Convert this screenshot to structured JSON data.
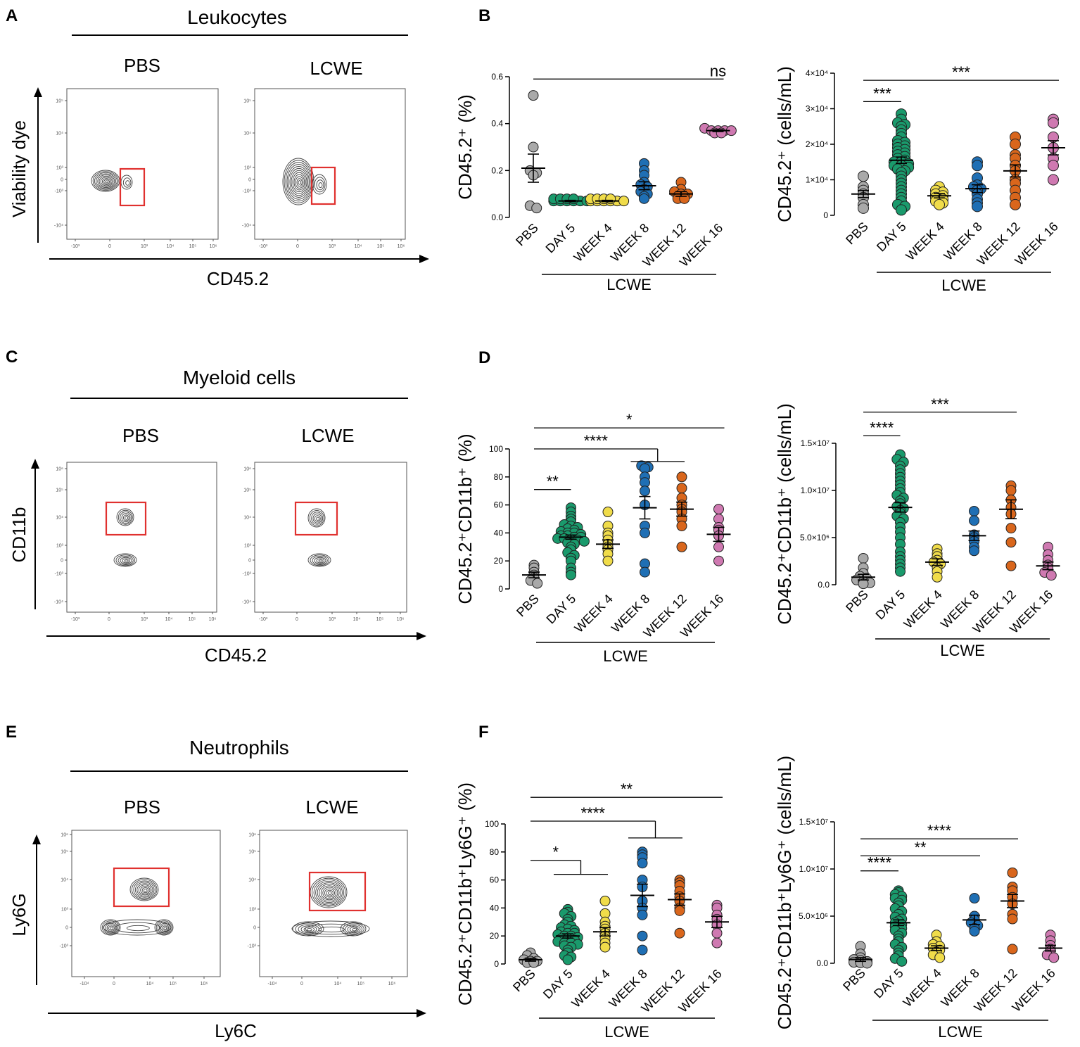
{
  "panels": {
    "A": {
      "letter": "A",
      "title": "Leukocytes",
      "cond_left": "PBS",
      "cond_right": "LCWE",
      "ylabel": "Viability dye",
      "xlabel": "CD45.2"
    },
    "B": {
      "letter": "B"
    },
    "C": {
      "letter": "C",
      "title": "Myeloid cells",
      "cond_left": "PBS",
      "cond_right": "LCWE",
      "ylabel": "CD11b",
      "xlabel": "CD45.2"
    },
    "D": {
      "letter": "D"
    },
    "E": {
      "letter": "E",
      "title": "Neutrophils",
      "cond_left": "PBS",
      "cond_right": "LCWE",
      "ylabel": "Ly6G",
      "xlabel": "Ly6C"
    },
    "F": {
      "letter": "F"
    }
  },
  "flow_ticks": {
    "A": {
      "y": [
        "10⁵",
        "10⁴",
        "10³",
        "0",
        "-10³",
        "-10⁴"
      ],
      "x": [
        "-10³",
        "0",
        "10³",
        "10⁴",
        "10⁵",
        "10⁶"
      ]
    },
    "C": {
      "y": [
        "10⁶",
        "10⁵",
        "10⁴",
        "10³",
        "0",
        "-10³",
        "-10⁴"
      ],
      "x": [
        "-10³",
        "0",
        "10³",
        "10⁴",
        "10⁵",
        "10⁶"
      ]
    },
    "E": {
      "y": [
        "10⁶",
        "10⁵",
        "10⁴",
        "10³",
        "0",
        "-10³"
      ],
      "x": [
        "-10⁴",
        "0",
        "10⁴",
        "10⁵",
        "10⁶"
      ]
    }
  },
  "colors": {
    "PBS": "#a9a9a9",
    "DAY 5": "#1a9a6c",
    "WEEK 4": "#f0dc4a",
    "WEEK 8": "#1f6fb4",
    "WEEK 12": "#d9661c",
    "WEEK 16": "#cf79b1",
    "gate": "#e0312f",
    "contour": "#444444"
  },
  "chart_data": [
    {
      "id": "B1",
      "type": "scatter",
      "categories": [
        "PBS",
        "DAY 5",
        "WEEK 4",
        "WEEK 8",
        "WEEK 12",
        "WEEK 16"
      ],
      "group_label": "LCWE",
      "ylabel": "CD45.2⁺ (%)",
      "ylim": [
        0,
        0.6
      ],
      "yticks": [
        {
          "v": 0,
          "t": "0.0"
        },
        {
          "v": 0.2,
          "t": "0.2"
        },
        {
          "v": 0.4,
          "t": "0.4"
        },
        {
          "v": 0.6,
          "t": "0.6"
        }
      ],
      "mean": [
        0.21,
        0.07,
        0.07,
        0.135,
        0.1,
        0.37
      ],
      "sem": [
        0.06,
        0.003,
        0.003,
        0.017,
        0.01,
        0.004
      ],
      "points": [
        [
          0.52,
          0.3,
          0.2,
          0.19,
          0.18,
          0.05,
          0.04
        ],
        [
          0.07,
          0.07,
          0.07,
          0.07,
          0.07,
          0.07,
          0.07,
          0.07,
          0.07,
          0.07
        ],
        [
          0.07,
          0.07,
          0.07,
          0.07,
          0.07,
          0.07,
          0.07,
          0.07,
          0.07,
          0.07
        ],
        [
          0.23,
          0.2,
          0.18,
          0.15,
          0.14,
          0.13,
          0.12,
          0.11,
          0.1,
          0.09,
          0.08
        ],
        [
          0.15,
          0.12,
          0.11,
          0.1,
          0.1,
          0.09,
          0.09,
          0.08,
          0.08
        ],
        [
          0.38,
          0.37,
          0.37,
          0.37,
          0.37,
          0.36,
          0.36
        ]
      ],
      "sig": [
        {
          "from": 0,
          "to": 5,
          "y": 0.59,
          "label": "ns"
        }
      ]
    },
    {
      "id": "B2",
      "type": "scatter",
      "categories": [
        "PBS",
        "DAY 5",
        "WEEK 4",
        "WEEK 8",
        "WEEK 12",
        "WEEK 16"
      ],
      "group_label": "LCWE",
      "ylabel": "CD45.2⁺ (cells/mL)",
      "ylim": [
        0,
        40000
      ],
      "yticks": [
        {
          "v": 0,
          "t": "0"
        },
        {
          "v": 10000,
          "t": "1×10⁴"
        },
        {
          "v": 20000,
          "t": "2×10⁴"
        },
        {
          "v": 30000,
          "t": "3×10⁴"
        },
        {
          "v": 40000,
          "t": "4×10⁴"
        }
      ],
      "mean": [
        6000,
        15500,
        5500,
        7500,
        12500,
        19000
      ],
      "sem": [
        1000,
        900,
        600,
        1100,
        1700,
        2000
      ],
      "points": [
        [
          11000,
          8000,
          7000,
          6000,
          5000,
          3000,
          2000
        ],
        [
          28500,
          27000,
          26000,
          25500,
          25000,
          24000,
          23000,
          22000,
          21000,
          20500,
          20000,
          19500,
          19000,
          18500,
          18000,
          17500,
          17000,
          16500,
          16000,
          15500,
          15000,
          15000,
          14500,
          14000,
          14000,
          13500,
          13000,
          12500,
          12000,
          11000,
          10000,
          9000,
          8000,
          7000,
          6000,
          5000,
          4000,
          3000,
          2500,
          1500
        ],
        [
          8000,
          7000,
          6500,
          6000,
          5500,
          5000,
          4500,
          4000,
          3500,
          3000
        ],
        [
          15000,
          14000,
          10500,
          8500,
          8000,
          7500,
          7000,
          6000,
          4500,
          3500,
          2500
        ],
        [
          22000,
          20000,
          17000,
          16000,
          14000,
          12500,
          10000,
          9000,
          7000,
          5000,
          3000
        ],
        [
          27000,
          26000,
          22000,
          19000,
          16000,
          14000,
          10000
        ]
      ],
      "sig": [
        {
          "from": 0,
          "to": 1,
          "y": 32000,
          "label": "***"
        },
        {
          "from": 0,
          "to": 5,
          "y": 38000,
          "label": "***"
        }
      ]
    },
    {
      "id": "D1",
      "type": "scatter",
      "categories": [
        "PBS",
        "DAY 5",
        "WEEK 4",
        "WEEK 8",
        "WEEK 12",
        "WEEK 16"
      ],
      "group_label": "LCWE",
      "ylabel": "CD45.2⁺CD11b⁺ (%)",
      "ylim": [
        0,
        100
      ],
      "yticks": [
        {
          "v": 0,
          "t": "0"
        },
        {
          "v": 20,
          "t": "20"
        },
        {
          "v": 40,
          "t": "40"
        },
        {
          "v": 60,
          "t": "60"
        },
        {
          "v": 80,
          "t": "80"
        },
        {
          "v": 100,
          "t": "100"
        }
      ],
      "mean": [
        10,
        37,
        32,
        58,
        57,
        39
      ],
      "sem": [
        2,
        1.5,
        3,
        8,
        5,
        5
      ],
      "points": [
        [
          17,
          15,
          12,
          10,
          8,
          6,
          4
        ],
        [
          58,
          55,
          52,
          50,
          48,
          46,
          45,
          44,
          43,
          42,
          41,
          40,
          40,
          39,
          38,
          38,
          37,
          37,
          36,
          36,
          35,
          35,
          34,
          33,
          32,
          30,
          28,
          26,
          24,
          22,
          20,
          15,
          12,
          10
        ],
        [
          55,
          45,
          40,
          38,
          35,
          32,
          30,
          28,
          25,
          20
        ],
        [
          88,
          87,
          86,
          80,
          76,
          70,
          60,
          45,
          40,
          18,
          12
        ],
        [
          80,
          72,
          65,
          60,
          57,
          55,
          50,
          45,
          30
        ],
        [
          57,
          50,
          44,
          42,
          38,
          30,
          20
        ]
      ],
      "sig": [
        {
          "from": 0,
          "to": 1,
          "y": 71,
          "label": "**"
        },
        {
          "from": 0,
          "to": [
            3,
            4
          ],
          "y": 100,
          "label": "****",
          "bracket_y": 91
        },
        {
          "from": 0,
          "to": 5,
          "y": 115,
          "label": "*"
        }
      ]
    },
    {
      "id": "D2",
      "type": "scatter",
      "categories": [
        "PBS",
        "DAY 5",
        "WEEK 4",
        "WEEK 8",
        "WEEK 12",
        "WEEK 16"
      ],
      "group_label": "LCWE",
      "ylabel": "CD45.2⁺CD11b⁺ (cells/mL)",
      "ylim": [
        0,
        15000000
      ],
      "yticks": [
        {
          "v": 0,
          "t": "0.0"
        },
        {
          "v": 5000000,
          "t": "5.0×10⁶"
        },
        {
          "v": 10000000,
          "t": "1.0×10⁷"
        },
        {
          "v": 15000000,
          "t": "1.5×10⁷"
        }
      ],
      "mean": [
        800000,
        8200000,
        2400000,
        5200000,
        8000000,
        2000000
      ],
      "sem": [
        300000,
        500000,
        350000,
        500000,
        1000000,
        400000
      ],
      "points": [
        [
          2800000,
          1800000,
          1200000,
          900000,
          700000,
          500000,
          300000,
          200000,
          100000
        ],
        [
          13800000,
          13300000,
          13000000,
          12600000,
          12200000,
          11800000,
          11400000,
          11000000,
          10600000,
          10200000,
          9800000,
          9500000,
          9200000,
          8900000,
          8600000,
          8300000,
          8100000,
          7900000,
          7600000,
          7300000,
          7000000,
          6600000,
          6100000,
          5600000,
          5000000,
          4300000,
          3500000,
          3000000,
          2600000,
          2200000,
          1800000,
          1400000
        ],
        [
          3800000,
          3300000,
          3000000,
          2600000,
          2400000,
          2200000,
          1800000,
          1400000,
          800000
        ],
        [
          7800000,
          6800000,
          5300000,
          5000000,
          4600000,
          4000000,
          3600000
        ],
        [
          10500000,
          10000000,
          9000000,
          8200000,
          7500000,
          6000000,
          4500000,
          2000000
        ],
        [
          4000000,
          3200000,
          2600000,
          2100000,
          1800000,
          1300000,
          1000000
        ]
      ],
      "sig": [
        {
          "from": 0,
          "to": 1,
          "y": 15800000,
          "label": "****"
        },
        {
          "from": 0,
          "to": 4,
          "y": 18300000,
          "label": "***"
        }
      ]
    },
    {
      "id": "F1",
      "type": "scatter",
      "categories": [
        "PBS",
        "DAY 5",
        "WEEK 4",
        "WEEK 8",
        "WEEK 12",
        "WEEK 16"
      ],
      "group_label": "LCWE",
      "ylabel": "CD45.2⁺CD11b⁺Ly6G⁺ (%)",
      "ylim": [
        0,
        100
      ],
      "yticks": [
        {
          "v": 0,
          "t": "0"
        },
        {
          "v": 20,
          "t": "20"
        },
        {
          "v": 40,
          "t": "40"
        },
        {
          "v": 60,
          "t": "60"
        },
        {
          "v": 80,
          "t": "80"
        },
        {
          "v": 100,
          "t": "100"
        }
      ],
      "mean": [
        3,
        20,
        23,
        49,
        46,
        30
      ],
      "sem": [
        1,
        1.5,
        3,
        8,
        4,
        4
      ],
      "points": [
        [
          8,
          6,
          4,
          3,
          2,
          2,
          1,
          1
        ],
        [
          39,
          37,
          36,
          34,
          32,
          30,
          28,
          27,
          26,
          25,
          24,
          23,
          22,
          22,
          21,
          20,
          20,
          19,
          18,
          18,
          17,
          16,
          15,
          15,
          14,
          13,
          12,
          10,
          8,
          6,
          5,
          3
        ],
        [
          45,
          36,
          30,
          27,
          25,
          22,
          20,
          18,
          15,
          12
        ],
        [
          80,
          78,
          76,
          72,
          60,
          55,
          45,
          40,
          35,
          20,
          10
        ],
        [
          60,
          58,
          56,
          52,
          48,
          45,
          40,
          38,
          22
        ],
        [
          42,
          40,
          35,
          32,
          28,
          22,
          15
        ]
      ],
      "sig": [
        {
          "from": 0,
          "to": [
            1,
            2
          ],
          "y": 74,
          "label": "*",
          "bracket_y": 64
        },
        {
          "from": 0,
          "to": [
            3,
            4
          ],
          "y": 102,
          "label": "****",
          "bracket_y": 90
        },
        {
          "from": 0,
          "to": 5,
          "y": 119,
          "label": "**"
        }
      ]
    },
    {
      "id": "F2",
      "type": "scatter",
      "categories": [
        "PBS",
        "DAY 5",
        "WEEK 4",
        "WEEK 8",
        "WEEK 12",
        "WEEK 16"
      ],
      "group_label": "LCWE",
      "ylabel": "CD45.2⁺CD11b⁺Ly6G⁺ (cells/mL)",
      "ylim": [
        0,
        15000000
      ],
      "yticks": [
        {
          "v": 0,
          "t": "0.0"
        },
        {
          "v": 5000000,
          "t": "5.0×10⁶"
        },
        {
          "v": 10000000,
          "t": "1.0×10⁷"
        },
        {
          "v": 15000000,
          "t": "1.5×10⁷"
        }
      ],
      "mean": [
        400000,
        4300000,
        1600000,
        4600000,
        6600000,
        1600000
      ],
      "sem": [
        200000,
        300000,
        250000,
        500000,
        700000,
        300000
      ],
      "points": [
        [
          1800000,
          1000000,
          600000,
          400000,
          300000,
          200000,
          100000,
          50000,
          0
        ],
        [
          7700000,
          7500000,
          7300000,
          7100000,
          6900000,
          6700000,
          6400000,
          6100000,
          5800000,
          5500000,
          5200000,
          4900000,
          4700000,
          4500000,
          4300000,
          4100000,
          3900000,
          3700000,
          3500000,
          3200000,
          2900000,
          2600000,
          2300000,
          2000000,
          1700000,
          1400000,
          1100000,
          800000,
          500000,
          200000
        ],
        [
          3000000,
          2300000,
          2000000,
          1800000,
          1600000,
          1400000,
          1200000,
          900000,
          600000
        ],
        [
          6900000,
          5000000,
          4600000,
          4300000,
          4000000,
          3700000,
          3400000
        ],
        [
          9600000,
          8100000,
          7700000,
          7000000,
          6300000,
          5200000,
          4700000,
          1500000
        ],
        [
          3000000,
          2400000,
          1900000,
          1500000,
          1300000,
          900000,
          600000
        ]
      ],
      "sig": [
        {
          "from": 0,
          "to": 1,
          "y": 9800000,
          "label": "****"
        },
        {
          "from": 0,
          "to": 3,
          "y": 11400000,
          "label": "**"
        },
        {
          "from": 0,
          "to": 4,
          "y": 13200000,
          "label": "****"
        }
      ]
    }
  ]
}
